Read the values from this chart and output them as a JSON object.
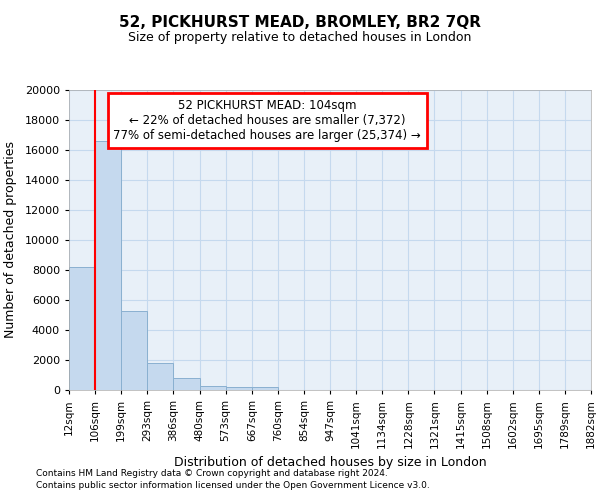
{
  "title": "52, PICKHURST MEAD, BROMLEY, BR2 7QR",
  "subtitle": "Size of property relative to detached houses in London",
  "xlabel": "Distribution of detached houses by size in London",
  "ylabel": "Number of detached properties",
  "footer_line1": "Contains HM Land Registry data © Crown copyright and database right 2024.",
  "footer_line2": "Contains public sector information licensed under the Open Government Licence v3.0.",
  "annotation_line1": "52 PICKHURST MEAD: 104sqm",
  "annotation_line2": "← 22% of detached houses are smaller (7,372)",
  "annotation_line3": "77% of semi-detached houses are larger (25,374) →",
  "bar_edges": [
    12,
    106,
    199,
    293,
    386,
    480,
    573,
    667,
    760,
    854,
    947,
    1041,
    1134,
    1228,
    1321,
    1415,
    1508,
    1602,
    1695,
    1789,
    1882
  ],
  "bar_heights": [
    8200,
    16600,
    5300,
    1800,
    800,
    300,
    200,
    200,
    0,
    0,
    0,
    0,
    0,
    0,
    0,
    0,
    0,
    0,
    0,
    0
  ],
  "bar_color": "#c5d9ee",
  "bar_edgecolor": "#8ab0d0",
  "red_line_x": 106,
  "ylim": [
    0,
    20000
  ],
  "yticks": [
    0,
    2000,
    4000,
    6000,
    8000,
    10000,
    12000,
    14000,
    16000,
    18000,
    20000
  ],
  "grid_color": "#c5d9ee",
  "bg_color": "#e8f0f8",
  "tick_labels": [
    "12sqm",
    "106sqm",
    "199sqm",
    "293sqm",
    "386sqm",
    "480sqm",
    "573sqm",
    "667sqm",
    "760sqm",
    "854sqm",
    "947sqm",
    "1041sqm",
    "1134sqm",
    "1228sqm",
    "1321sqm",
    "1415sqm",
    "1508sqm",
    "1602sqm",
    "1695sqm",
    "1789sqm",
    "1882sqm"
  ]
}
